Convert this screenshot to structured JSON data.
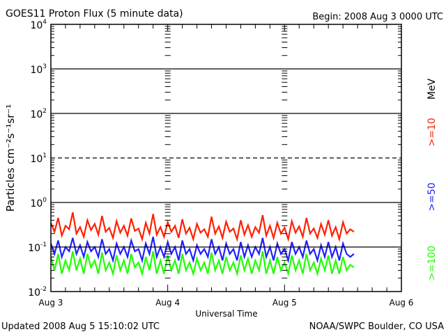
{
  "chart_data": {
    "type": "line",
    "title": "GOES11 Proton Flux (5 minute data)",
    "begin": "Begin: 2008 Aug 3 0000 UTC",
    "xlabel": "Universal Time",
    "ylabel": "Particles cm⁻²s⁻¹sr⁻¹",
    "x_tick_labels": [
      "Aug 3",
      "Aug 4",
      "Aug 5",
      "Aug 6"
    ],
    "xlim_hours": [
      0,
      72
    ],
    "y_scale": "log",
    "ylim": [
      0.01,
      10000
    ],
    "y_tick_labels": [
      {
        "base": "10",
        "exp": "4"
      },
      {
        "base": "10",
        "exp": "3"
      },
      {
        "base": "10",
        "exp": "2"
      },
      {
        "base": "10",
        "exp": "1"
      },
      {
        "base": "10",
        "exp": "0"
      },
      {
        "base": "10",
        "exp": "-1"
      },
      {
        "base": "10",
        "exp": "-2"
      }
    ],
    "x_start_hours": 0,
    "step_hours": 0.75,
    "units_label": "MeV",
    "series": [
      {
        "name": ">=10",
        "color": "#ff2000",
        "values": [
          0.35,
          0.22,
          0.45,
          0.18,
          0.3,
          0.25,
          0.6,
          0.2,
          0.28,
          0.17,
          0.4,
          0.24,
          0.33,
          0.19,
          0.5,
          0.22,
          0.27,
          0.16,
          0.38,
          0.21,
          0.3,
          0.18,
          0.44,
          0.23,
          0.26,
          0.15,
          0.35,
          0.2,
          0.55,
          0.19,
          0.28,
          0.17,
          0.36,
          0.22,
          0.3,
          0.16,
          0.42,
          0.2,
          0.27,
          0.15,
          0.33,
          0.21,
          0.25,
          0.17,
          0.48,
          0.2,
          0.29,
          0.16,
          0.37,
          0.22,
          0.26,
          0.15,
          0.4,
          0.19,
          0.31,
          0.17,
          0.28,
          0.21,
          0.52,
          0.18,
          0.3,
          0.16,
          0.35,
          0.2,
          0.27,
          0.15,
          0.38,
          0.21,
          0.29,
          0.17,
          0.45,
          0.2,
          0.26,
          0.16,
          0.33,
          0.19,
          0.4,
          0.18,
          0.28,
          0.15,
          0.36,
          0.2,
          0.25,
          0.22
        ]
      },
      {
        "name": ">=50",
        "color": "#2020ff",
        "values": [
          0.12,
          0.07,
          0.14,
          0.06,
          0.1,
          0.08,
          0.16,
          0.07,
          0.11,
          0.06,
          0.13,
          0.08,
          0.1,
          0.06,
          0.15,
          0.07,
          0.09,
          0.05,
          0.12,
          0.07,
          0.1,
          0.06,
          0.14,
          0.08,
          0.09,
          0.05,
          0.12,
          0.07,
          0.17,
          0.06,
          0.1,
          0.06,
          0.13,
          0.07,
          0.1,
          0.05,
          0.14,
          0.07,
          0.09,
          0.05,
          0.11,
          0.07,
          0.09,
          0.06,
          0.15,
          0.07,
          0.1,
          0.05,
          0.12,
          0.07,
          0.09,
          0.05,
          0.13,
          0.06,
          0.11,
          0.06,
          0.1,
          0.07,
          0.16,
          0.06,
          0.1,
          0.05,
          0.12,
          0.07,
          0.09,
          0.05,
          0.13,
          0.07,
          0.1,
          0.06,
          0.14,
          0.07,
          0.09,
          0.05,
          0.11,
          0.06,
          0.13,
          0.06,
          0.1,
          0.05,
          0.12,
          0.07,
          0.06,
          0.07
        ]
      },
      {
        "name": ">=100",
        "color": "#20ff00",
        "values": [
          0.06,
          0.03,
          0.07,
          0.025,
          0.05,
          0.03,
          0.08,
          0.03,
          0.055,
          0.025,
          0.07,
          0.035,
          0.05,
          0.025,
          0.075,
          0.03,
          0.045,
          0.025,
          0.065,
          0.03,
          0.05,
          0.025,
          0.07,
          0.035,
          0.045,
          0.025,
          0.06,
          0.03,
          0.08,
          0.025,
          0.05,
          0.025,
          0.065,
          0.03,
          0.05,
          0.025,
          0.07,
          0.03,
          0.045,
          0.025,
          0.055,
          0.03,
          0.045,
          0.025,
          0.075,
          0.03,
          0.05,
          0.025,
          0.06,
          0.03,
          0.045,
          0.025,
          0.065,
          0.03,
          0.055,
          0.025,
          0.05,
          0.03,
          0.08,
          0.025,
          0.05,
          0.025,
          0.06,
          0.03,
          0.045,
          0.025,
          0.065,
          0.03,
          0.05,
          0.025,
          0.07,
          0.03,
          0.045,
          0.025,
          0.055,
          0.03,
          0.065,
          0.025,
          0.05,
          0.025,
          0.06,
          0.03,
          0.04,
          0.035
        ]
      }
    ]
  },
  "footer": {
    "updated": "Updated 2008 Aug  5 15:10:02 UTC",
    "credit": "NOAA/SWPC Boulder, CO USA"
  }
}
